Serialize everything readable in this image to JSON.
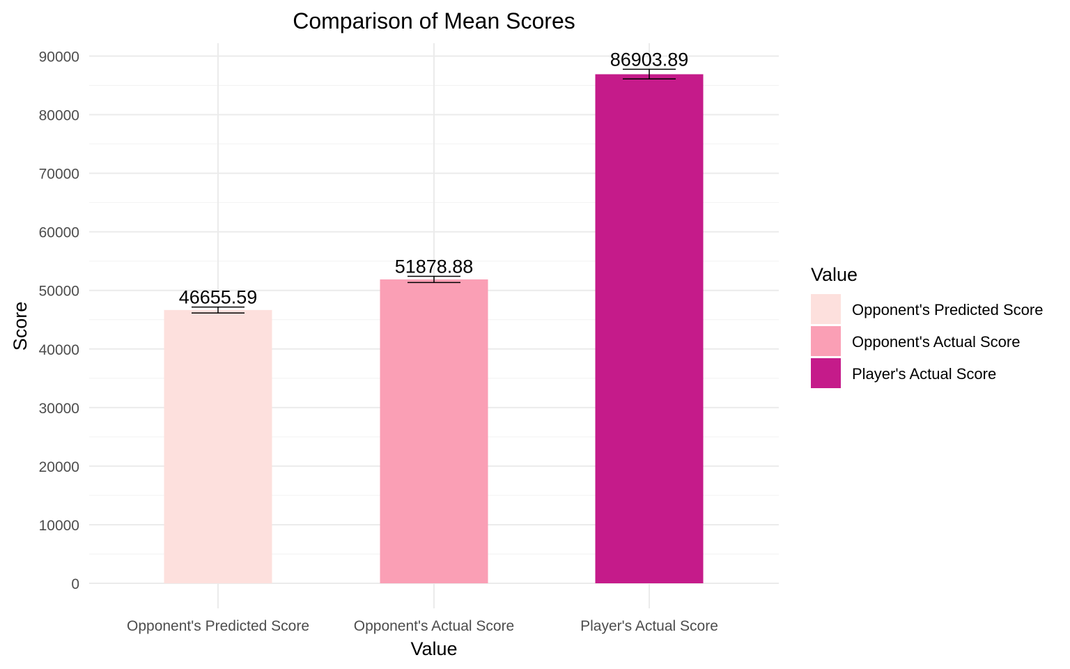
{
  "chart_data": {
    "type": "bar",
    "title": "Comparison of Mean Scores",
    "xlabel": "Value",
    "ylabel": "Score",
    "categories": [
      "Opponent's Predicted Score",
      "Opponent's Actual Score",
      "Player's Actual Score"
    ],
    "values": [
      46655.59,
      51878.88,
      86903.89
    ],
    "value_labels": [
      "46655.59",
      "51878.88",
      "86903.89"
    ],
    "error_bars": [
      {
        "low": 46150,
        "high": 47150
      },
      {
        "low": 51350,
        "high": 52400
      },
      {
        "low": 86100,
        "high": 87750
      }
    ],
    "colors": [
      "#fde0dd",
      "#fa9fb5",
      "#c51b8a"
    ],
    "ylim": [
      0,
      91500
    ],
    "yticks": [
      0,
      10000,
      20000,
      30000,
      40000,
      50000,
      60000,
      70000,
      80000,
      90000
    ],
    "ytick_labels": [
      "0",
      "10000",
      "20000",
      "30000",
      "40000",
      "50000",
      "60000",
      "70000",
      "80000",
      "90000"
    ],
    "grid": true,
    "legend": {
      "title": "Value",
      "position": "right",
      "entries": [
        "Opponent's Predicted Score",
        "Opponent's Actual Score",
        "Player's Actual Score"
      ]
    }
  }
}
